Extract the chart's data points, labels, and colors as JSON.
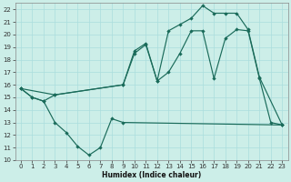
{
  "xlabel": "Humidex (Indice chaleur)",
  "bg_color": "#cceee8",
  "grid_color": "#aadddd",
  "line_color": "#1a6b5a",
  "xlim": [
    -0.5,
    23.5
  ],
  "ylim": [
    10,
    22.5
  ],
  "yticks": [
    10,
    11,
    12,
    13,
    14,
    15,
    16,
    17,
    18,
    19,
    20,
    21,
    22
  ],
  "xticks": [
    0,
    1,
    2,
    3,
    4,
    5,
    6,
    7,
    8,
    9,
    10,
    11,
    12,
    13,
    14,
    15,
    16,
    17,
    18,
    19,
    20,
    21,
    22,
    23
  ],
  "line_bottom_x": [
    0,
    1,
    2,
    3,
    4,
    5,
    6,
    7,
    8,
    9,
    23
  ],
  "line_bottom_y": [
    15.7,
    15.0,
    14.7,
    13.0,
    12.2,
    11.1,
    10.4,
    11.0,
    13.3,
    13.0,
    12.8
  ],
  "line_mid_x": [
    0,
    1,
    2,
    3,
    9,
    10,
    11,
    12,
    13,
    14,
    15,
    16,
    17,
    18,
    19,
    20,
    21,
    22,
    23
  ],
  "line_mid_y": [
    15.7,
    15.0,
    14.7,
    15.2,
    16.0,
    18.7,
    19.3,
    16.3,
    17.0,
    18.5,
    20.3,
    20.3,
    16.5,
    19.7,
    20.4,
    20.3,
    16.5,
    13.0,
    12.8
  ],
  "line_top_x": [
    0,
    3,
    9,
    10,
    11,
    12,
    13,
    14,
    15,
    16,
    17,
    18,
    19,
    20,
    21,
    23
  ],
  "line_top_y": [
    15.7,
    15.2,
    16.0,
    18.5,
    19.2,
    16.3,
    20.3,
    20.8,
    21.3,
    22.3,
    21.7,
    21.7,
    21.7,
    20.4,
    16.6,
    12.8
  ]
}
